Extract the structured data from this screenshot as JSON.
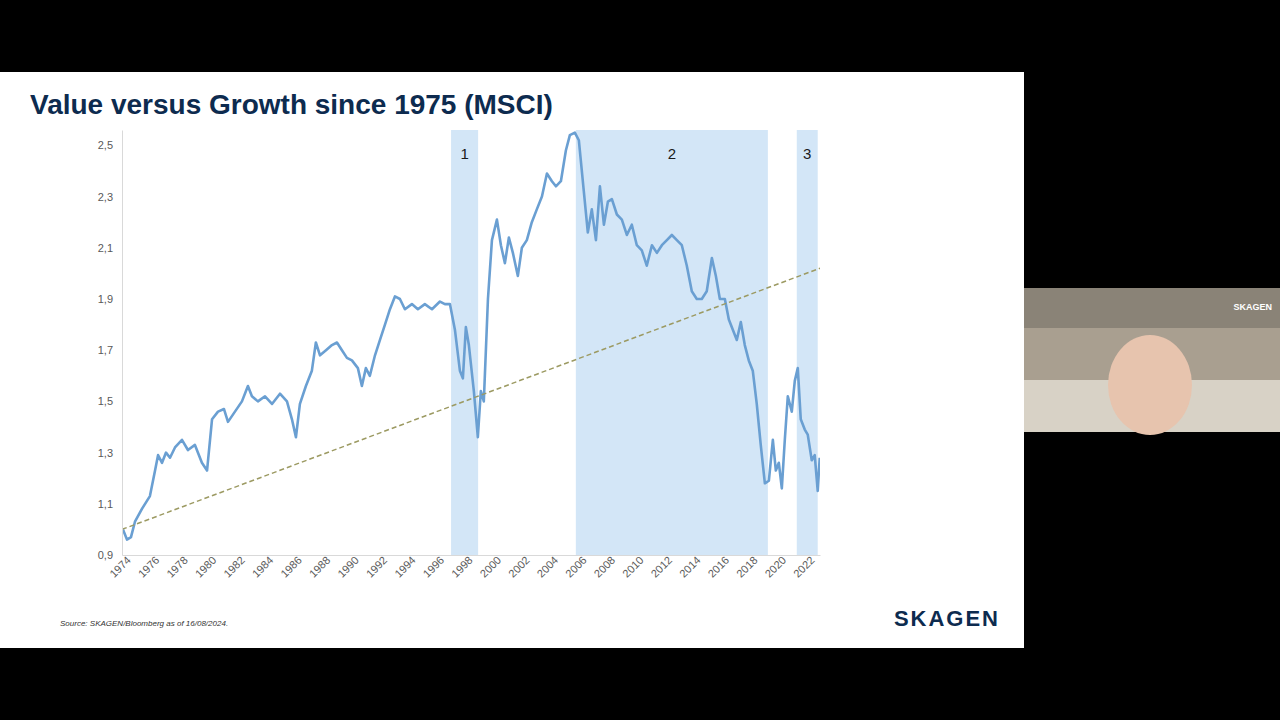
{
  "chart_data": {
    "type": "line",
    "title": "Value versus Growth since 1975 (MSCI)",
    "xlim": [
      1974,
      2023
    ],
    "xticks": [
      1974,
      1976,
      1978,
      1980,
      1982,
      1984,
      1986,
      1988,
      1990,
      1992,
      1994,
      1996,
      1998,
      2000,
      2002,
      2004,
      2006,
      2008,
      2010,
      2012,
      2014,
      2016,
      2018,
      2020,
      2022
    ],
    "ylim": [
      0.9,
      2.56
    ],
    "yticks": [
      {
        "value": 0.9,
        "label": "0,9"
      },
      {
        "value": 1.1,
        "label": "1,1"
      },
      {
        "value": 1.3,
        "label": "1,3"
      },
      {
        "value": 1.5,
        "label": "1,5"
      },
      {
        "value": 1.7,
        "label": "1,7"
      },
      {
        "value": 1.9,
        "label": "1,9"
      },
      {
        "value": 2.1,
        "label": "2,1"
      },
      {
        "value": 2.3,
        "label": "2,3"
      },
      {
        "value": 2.5,
        "label": "2,5"
      }
    ],
    "grid": false,
    "shaded_regions": [
      {
        "x": [
          1997.1,
          1999.0
        ],
        "label": "1"
      },
      {
        "x": [
          2005.86,
          2019.34
        ],
        "label": "2"
      },
      {
        "x": [
          2021.37,
          2022.84
        ],
        "label": "3"
      }
    ],
    "series": [
      {
        "color": "#6a9fd2",
        "line_style": "solid",
        "x": [
          1974.07,
          1974.35,
          1974.63,
          1974.91,
          1975.4,
          1975.96,
          1976.32,
          1976.53,
          1976.81,
          1977.09,
          1977.37,
          1977.72,
          1978.21,
          1978.63,
          1979.12,
          1979.61,
          1979.97,
          1980.32,
          1980.74,
          1981.16,
          1981.44,
          1981.93,
          1982.42,
          1982.84,
          1983.12,
          1983.54,
          1984.04,
          1984.53,
          1985.09,
          1985.58,
          1985.93,
          1986.21,
          1986.49,
          1986.91,
          1987.33,
          1987.61,
          1987.9,
          1988.32,
          1988.74,
          1989.09,
          1989.44,
          1989.79,
          1990.14,
          1990.56,
          1990.84,
          1991.12,
          1991.4,
          1991.76,
          1992.11,
          1992.46,
          1992.81,
          1993.16,
          1993.51,
          1993.86,
          1994.35,
          1994.77,
          1995.26,
          1995.76,
          1996.32,
          1996.67,
          1997.02,
          1997.37,
          1997.72,
          1997.93,
          1998.14,
          1998.35,
          1998.7,
          1998.98,
          1999.19,
          1999.4,
          1999.69,
          1999.97,
          2000.32,
          2000.6,
          2000.88,
          2001.16,
          2001.44,
          2001.79,
          2002.07,
          2002.42,
          2002.77,
          2003.12,
          2003.48,
          2003.83,
          2004.18,
          2004.46,
          2004.81,
          2005.16,
          2005.44,
          2005.79,
          2006.07,
          2006.42,
          2006.7,
          2006.98,
          2007.27,
          2007.55,
          2007.83,
          2008.11,
          2008.39,
          2008.74,
          2009.09,
          2009.44,
          2009.79,
          2010.14,
          2010.49,
          2010.84,
          2011.2,
          2011.55,
          2011.9,
          2012.25,
          2012.6,
          2012.95,
          2013.3,
          2013.65,
          2014.0,
          2014.35,
          2014.7,
          2015.05,
          2015.41,
          2015.69,
          2015.97,
          2016.32,
          2016.6,
          2016.88,
          2017.16,
          2017.44,
          2017.72,
          2018.0,
          2018.28,
          2018.56,
          2018.84,
          2019.13,
          2019.41,
          2019.69,
          2019.9,
          2020.11,
          2020.32,
          2020.53,
          2020.74,
          2021.02,
          2021.23,
          2021.44,
          2021.65,
          2021.93,
          2022.14,
          2022.42,
          2022.63,
          2022.84,
          2022.98
        ],
        "values": [
          1.0,
          0.96,
          0.97,
          1.03,
          1.08,
          1.13,
          1.23,
          1.29,
          1.26,
          1.3,
          1.28,
          1.32,
          1.35,
          1.31,
          1.33,
          1.26,
          1.23,
          1.43,
          1.46,
          1.47,
          1.42,
          1.46,
          1.5,
          1.56,
          1.52,
          1.5,
          1.52,
          1.49,
          1.53,
          1.5,
          1.43,
          1.36,
          1.49,
          1.56,
          1.62,
          1.73,
          1.68,
          1.7,
          1.72,
          1.73,
          1.7,
          1.67,
          1.66,
          1.63,
          1.56,
          1.63,
          1.6,
          1.68,
          1.74,
          1.8,
          1.86,
          1.91,
          1.9,
          1.86,
          1.88,
          1.86,
          1.88,
          1.86,
          1.89,
          1.88,
          1.88,
          1.78,
          1.62,
          1.59,
          1.79,
          1.72,
          1.54,
          1.36,
          1.54,
          1.5,
          1.9,
          2.13,
          2.21,
          2.11,
          2.04,
          2.14,
          2.08,
          1.99,
          2.1,
          2.13,
          2.2,
          2.25,
          2.3,
          2.39,
          2.36,
          2.34,
          2.36,
          2.48,
          2.54,
          2.55,
          2.52,
          2.32,
          2.16,
          2.25,
          2.13,
          2.34,
          2.19,
          2.28,
          2.29,
          2.23,
          2.21,
          2.15,
          2.19,
          2.11,
          2.09,
          2.03,
          2.11,
          2.08,
          2.11,
          2.13,
          2.15,
          2.13,
          2.11,
          2.03,
          1.93,
          1.9,
          1.9,
          1.93,
          2.06,
          1.99,
          1.9,
          1.9,
          1.82,
          1.78,
          1.74,
          1.81,
          1.72,
          1.66,
          1.62,
          1.49,
          1.33,
          1.18,
          1.19,
          1.35,
          1.23,
          1.26,
          1.16,
          1.35,
          1.52,
          1.46,
          1.58,
          1.63,
          1.43,
          1.39,
          1.37,
          1.27,
          1.29,
          1.15,
          1.28
        ]
      },
      {
        "color": "#9c9a62",
        "line_style": "dashed",
        "x": [
          1974,
          2023
        ],
        "values": [
          1.0,
          2.02
        ]
      }
    ]
  },
  "footer": {
    "source": "Source: SKAGEN/Bloomberg as of 16/08/2024.",
    "logo": "SKAGEN"
  },
  "video_overlay": {
    "logo": "SKAGEN"
  }
}
